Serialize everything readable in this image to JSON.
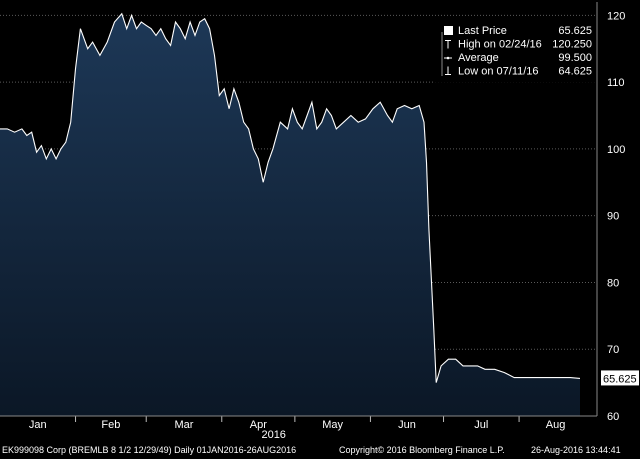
{
  "chart_data": {
    "type": "area",
    "title": "",
    "xlabel": "2016",
    "ylabel": "",
    "x_tick_labels": [
      "Jan",
      "Feb",
      "Mar",
      "Apr",
      "May",
      "Jun",
      "Jul",
      "Aug"
    ],
    "y_tick_labels": [
      "60",
      "70",
      "80",
      "90",
      "100",
      "110",
      "120"
    ],
    "ylim": [
      60,
      122
    ],
    "xlim": [
      "2016-01-01",
      "2016-08-26"
    ],
    "grid": true,
    "legend_position": "top-right",
    "last_value_label": "65.625",
    "series": [
      {
        "x": [
          "2016-01-01",
          "2016-01-04",
          "2016-01-07",
          "2016-01-10",
          "2016-01-12",
          "2016-01-14",
          "2016-01-16",
          "2016-01-18",
          "2016-01-20",
          "2016-01-22",
          "2016-01-24",
          "2016-01-26",
          "2016-01-28",
          "2016-01-30",
          "2016-02-01",
          "2016-02-03",
          "2016-02-06",
          "2016-02-08",
          "2016-02-11",
          "2016-02-14",
          "2016-02-17",
          "2016-02-20",
          "2016-02-22",
          "2016-02-24",
          "2016-02-26",
          "2016-02-28",
          "2016-03-01",
          "2016-03-03",
          "2016-03-05",
          "2016-03-07",
          "2016-03-09",
          "2016-03-11",
          "2016-03-13",
          "2016-03-15",
          "2016-03-17",
          "2016-03-19",
          "2016-03-21",
          "2016-03-23",
          "2016-03-25",
          "2016-03-27",
          "2016-03-29",
          "2016-03-31",
          "2016-04-02",
          "2016-04-04",
          "2016-04-06",
          "2016-04-08",
          "2016-04-10",
          "2016-04-12",
          "2016-04-14",
          "2016-04-16",
          "2016-04-18",
          "2016-04-20",
          "2016-04-22",
          "2016-04-25",
          "2016-04-28",
          "2016-04-30",
          "2016-05-02",
          "2016-05-04",
          "2016-05-06",
          "2016-05-08",
          "2016-05-10",
          "2016-05-12",
          "2016-05-14",
          "2016-05-16",
          "2016-05-18",
          "2016-05-21",
          "2016-05-24",
          "2016-05-27",
          "2016-05-30",
          "2016-06-02",
          "2016-06-05",
          "2016-06-08",
          "2016-06-10",
          "2016-06-12",
          "2016-06-15",
          "2016-06-18",
          "2016-06-21",
          "2016-06-23",
          "2016-06-24",
          "2016-06-25",
          "2016-06-27",
          "2016-06-28",
          "2016-06-30",
          "2016-07-03",
          "2016-07-06",
          "2016-07-09",
          "2016-07-12",
          "2016-07-15",
          "2016-07-18",
          "2016-07-22",
          "2016-07-26",
          "2016-07-30",
          "2016-08-03",
          "2016-08-07",
          "2016-08-12",
          "2016-08-17",
          "2016-08-22",
          "2016-08-26"
        ],
        "y": [
          103,
          103,
          102.5,
          103,
          102,
          102.5,
          99.5,
          100.5,
          98.5,
          100,
          98.5,
          100,
          101,
          104,
          112,
          118,
          115,
          116,
          114,
          116,
          119,
          120.25,
          118,
          120,
          118,
          119,
          118.5,
          118,
          117,
          118,
          116.5,
          115.5,
          119,
          118,
          116.5,
          119,
          117,
          119,
          119.5,
          118,
          114,
          108,
          109,
          106,
          109,
          107,
          104,
          103,
          100,
          98.5,
          95,
          98,
          100,
          104,
          103,
          106,
          104,
          103,
          105,
          107,
          103,
          104,
          106,
          105,
          103,
          104,
          105,
          104,
          104.5,
          106,
          107,
          105,
          104,
          106,
          106.5,
          106,
          106.5,
          104,
          98,
          88,
          73,
          65,
          67.5,
          68.5,
          68.5,
          67.5,
          67.5,
          67.5,
          67,
          67,
          66.5,
          65.75,
          65.75,
          65.75,
          65.75,
          65.75,
          65.75,
          65.625
        ]
      }
    ],
    "legend": [
      {
        "marker": "square",
        "label": "Last Price",
        "value": "65.625"
      },
      {
        "marker": "high",
        "label": "High on 02/24/16",
        "value": "120.250"
      },
      {
        "marker": "average",
        "label": "Average",
        "value": "99.500"
      },
      {
        "marker": "low",
        "label": "Low on 07/11/16",
        "value": "64.625"
      }
    ]
  },
  "colors": {
    "background": "#000000",
    "area_top": "#1d3857",
    "area_bottom": "#0b1726",
    "line": "#ffffff",
    "grid": "#5a5a5a"
  },
  "footer": {
    "security": "EK999098 Corp (BREMLB 8 1/2 12/29/49) Daily 01JAN2016-26AUG2016",
    "copyright": "Copyright© 2016 Bloomberg Finance L.P.",
    "timestamp": "26-Aug-2016 13:44:41"
  }
}
